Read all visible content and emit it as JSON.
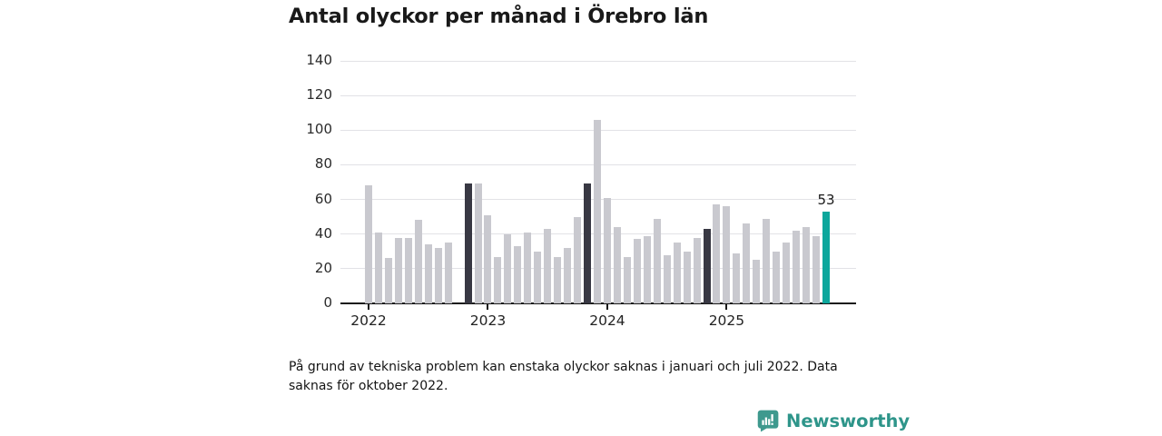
{
  "footnote": "På grund av tekniska problem kan enstaka olyckor saknas i januari och juli 2022. Data saknas för oktober 2022.",
  "brand": {
    "name": "Newsworthy"
  },
  "colors": {
    "bar_default": "#c9c9cf",
    "bar_highlight_dark": "#383843",
    "bar_current": "#0da79c",
    "axis": "#1a1a1a",
    "grid": "#e2e2e6",
    "icon_teal": "#3e998e",
    "brand_text": "#2e958a"
  },
  "chart_data": {
    "type": "bar",
    "title": "Antal olyckor per månad i Örebro län",
    "xlabel": "",
    "ylabel": "",
    "ylim": [
      0,
      140
    ],
    "y_ticks": [
      0,
      20,
      40,
      60,
      80,
      100,
      120,
      140
    ],
    "x_tick_labels": [
      "2022",
      "2023",
      "2024",
      "2025"
    ],
    "grid": true,
    "legend": false,
    "note": "null value = missing month (okt 2022); highlight dark = november previous years; current = latest month",
    "months": [
      {
        "m": "jan 2022",
        "v": 68
      },
      {
        "m": "feb 2022",
        "v": 41
      },
      {
        "m": "mar 2022",
        "v": 26
      },
      {
        "m": "apr 2022",
        "v": 38
      },
      {
        "m": "maj 2022",
        "v": 38
      },
      {
        "m": "jun 2022",
        "v": 48
      },
      {
        "m": "jul 2022",
        "v": 34
      },
      {
        "m": "aug 2022",
        "v": 32
      },
      {
        "m": "sep 2022",
        "v": 35
      },
      {
        "m": "okt 2022",
        "v": null
      },
      {
        "m": "nov 2022",
        "v": 69,
        "highlight": "dark"
      },
      {
        "m": "dec 2022",
        "v": 69
      },
      {
        "m": "jan 2023",
        "v": 51
      },
      {
        "m": "feb 2023",
        "v": 27
      },
      {
        "m": "mar 2023",
        "v": 40
      },
      {
        "m": "apr 2023",
        "v": 33
      },
      {
        "m": "maj 2023",
        "v": 41
      },
      {
        "m": "jun 2023",
        "v": 30
      },
      {
        "m": "jul 2023",
        "v": 43
      },
      {
        "m": "aug 2023",
        "v": 27
      },
      {
        "m": "sep 2023",
        "v": 32
      },
      {
        "m": "okt 2023",
        "v": 50
      },
      {
        "m": "nov 2023",
        "v": 69,
        "highlight": "dark"
      },
      {
        "m": "dec 2023",
        "v": 106
      },
      {
        "m": "jan 2024",
        "v": 61
      },
      {
        "m": "feb 2024",
        "v": 44
      },
      {
        "m": "mar 2024",
        "v": 27
      },
      {
        "m": "apr 2024",
        "v": 37
      },
      {
        "m": "maj 2024",
        "v": 39
      },
      {
        "m": "jun 2024",
        "v": 49
      },
      {
        "m": "jul 2024",
        "v": 28
      },
      {
        "m": "aug 2024",
        "v": 35
      },
      {
        "m": "sep 2024",
        "v": 30
      },
      {
        "m": "okt 2024",
        "v": 38
      },
      {
        "m": "nov 2024",
        "v": 43,
        "highlight": "dark"
      },
      {
        "m": "dec 2024",
        "v": 57
      },
      {
        "m": "jan 2025",
        "v": 56
      },
      {
        "m": "feb 2025",
        "v": 29
      },
      {
        "m": "mar 2025",
        "v": 46
      },
      {
        "m": "apr 2025",
        "v": 25
      },
      {
        "m": "maj 2025",
        "v": 49
      },
      {
        "m": "jun 2025",
        "v": 30
      },
      {
        "m": "jul 2025",
        "v": 35
      },
      {
        "m": "aug 2025",
        "v": 42
      },
      {
        "m": "sep 2025",
        "v": 44
      },
      {
        "m": "okt 2025",
        "v": 39
      },
      {
        "m": "nov 2025",
        "v": 53,
        "highlight": "current",
        "label": "53"
      }
    ]
  }
}
